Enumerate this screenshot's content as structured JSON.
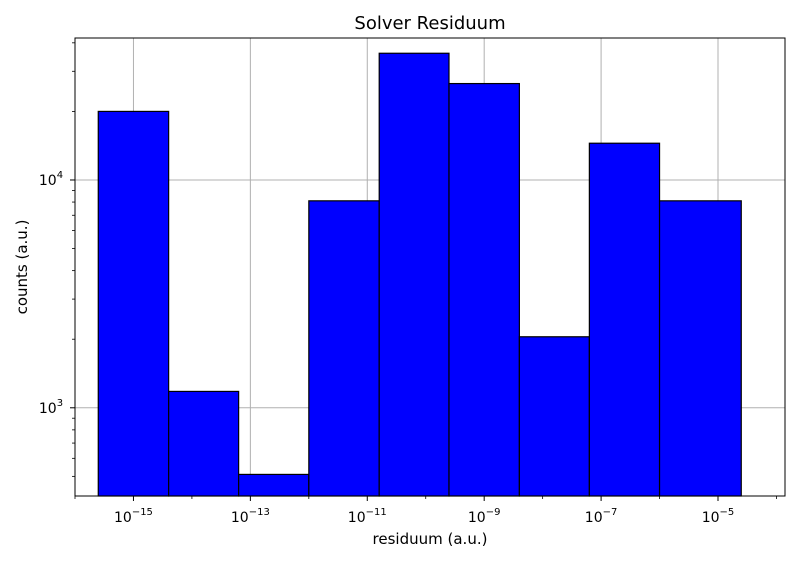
{
  "chart_data": {
    "type": "bar",
    "title": "Solver Residuum",
    "xlabel": "residuum (a.u.)",
    "ylabel": "counts (a.u.)",
    "x_scale": "log",
    "y_scale": "log",
    "bins": [
      {
        "x_start": 2.5e-16,
        "x_end": 4e-15,
        "value": 20000
      },
      {
        "x_start": 4e-15,
        "x_end": 6.3e-14,
        "value": 1180
      },
      {
        "x_start": 6.3e-14,
        "x_end": 1e-12,
        "value": 510
      },
      {
        "x_start": 1e-12,
        "x_end": 1.6e-11,
        "value": 8100
      },
      {
        "x_start": 1.6e-11,
        "x_end": 2.5e-10,
        "value": 36000
      },
      {
        "x_start": 2.5e-10,
        "x_end": 4e-09,
        "value": 26500
      },
      {
        "x_start": 4e-09,
        "x_end": 6.3e-08,
        "value": 2050
      },
      {
        "x_start": 6.3e-08,
        "x_end": 1e-06,
        "value": 14500
      },
      {
        "x_start": 1e-06,
        "x_end": 2.5e-05,
        "value": 8100
      }
    ],
    "xlim": [
      1e-16,
      0.00014
    ],
    "ylim": [
      410,
      42000
    ],
    "x_ticks": [
      {
        "value": 1e-15,
        "base": "10",
        "exp": "−15"
      },
      {
        "value": 1e-13,
        "base": "10",
        "exp": "−13"
      },
      {
        "value": 1e-11,
        "base": "10",
        "exp": "−11"
      },
      {
        "value": 1e-09,
        "base": "10",
        "exp": "−9"
      },
      {
        "value": 1e-07,
        "base": "10",
        "exp": "−7"
      },
      {
        "value": 1e-05,
        "base": "10",
        "exp": "−5"
      }
    ],
    "y_ticks": [
      {
        "value": 1000,
        "base": "10",
        "exp": "3"
      },
      {
        "value": 10000,
        "base": "10",
        "exp": "4"
      }
    ],
    "grid": true,
    "bar_color": "#0000ff",
    "edge_color": "#000000",
    "grid_color": "#b0b0b0"
  }
}
